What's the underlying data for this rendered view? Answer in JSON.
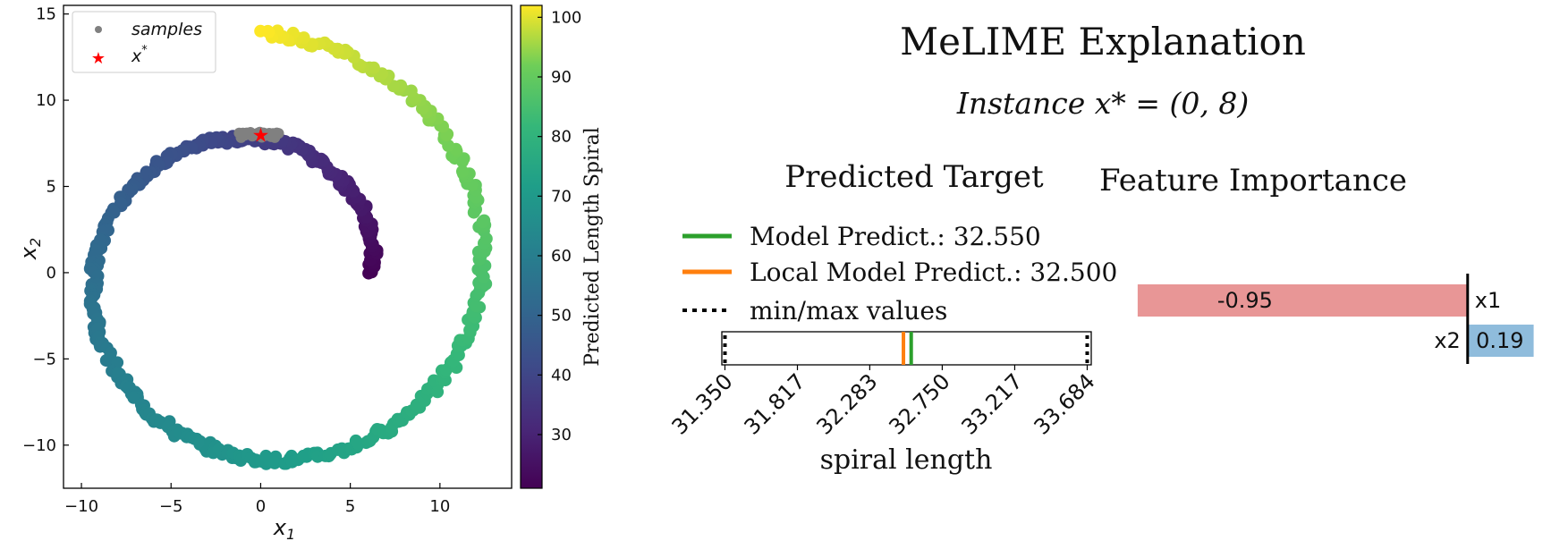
{
  "scatter": {
    "x_axis_label": "x",
    "x_axis_sub": "1",
    "y_axis_label": "x",
    "y_axis_sub": "2",
    "legend": {
      "samples_label": "samples",
      "xstar_label": "x",
      "xstar_sup": "*"
    },
    "colorbar_label": "Predicted Length Spiral",
    "colors": {
      "samples": "#808080",
      "xstar": "#ff0000"
    }
  },
  "melime": {
    "title": "MeLIME Explanation",
    "instance_label": "Instance x* = (0, 8)",
    "predicted_title": "Predicted Target",
    "feature_title": "Feature Importance",
    "legend": {
      "model_predict": "Model Predict.: 32.550",
      "local_predict": "Local Model Predict.: 32.500",
      "minmax": "min/max values"
    },
    "colors": {
      "model": "#2ca02c",
      "local": "#ff7f0e",
      "negative": "#e89696",
      "positive": "#8fbcdc"
    }
  },
  "chart_data": [
    {
      "type": "scatter",
      "title": "",
      "xlabel": "x1",
      "ylabel": "x2",
      "xlim": [
        -11,
        14
      ],
      "ylim": [
        -12.5,
        15.5
      ],
      "xticks": [
        "−10",
        "−5",
        "0",
        "5",
        "10"
      ],
      "xtick_values": [
        -10,
        -5,
        0,
        5,
        10
      ],
      "yticks": [
        "−10",
        "−5",
        "0",
        "5",
        "10",
        "15"
      ],
      "ytick_values": [
        -10,
        -5,
        0,
        5,
        10,
        15
      ],
      "spiral": {
        "description": "Archimedean spiral points colored by predicted length",
        "radius_start": 6.2,
        "radius_end": 13.9,
        "angle_start_deg": 0,
        "angle_end_deg": 450,
        "length_range": [
          21,
          102
        ]
      },
      "samples": {
        "x_min": -1.2,
        "x_max": 1.0,
        "y": 8.0
      },
      "xstar": {
        "x": 0,
        "y": 8
      }
    },
    {
      "type": "colorbar",
      "ylabel": "Predicted Length Spiral",
      "ylim": [
        21,
        102
      ],
      "tick_values": [
        30,
        40,
        50,
        60,
        70,
        80,
        90,
        100
      ],
      "ticks": [
        "30",
        "40",
        "50",
        "60",
        "70",
        "80",
        "90",
        "100"
      ],
      "colormap": "viridis"
    },
    {
      "type": "line",
      "title": "Predicted Target",
      "xlabel": "spiral length",
      "xlim": [
        31.33,
        33.71
      ],
      "tick_values": [
        31.35,
        31.817,
        32.283,
        32.75,
        33.217,
        33.684
      ],
      "ticks": [
        "31.350",
        "31.817",
        "32.283",
        "32.750",
        "33.217",
        "33.684"
      ],
      "model_predict": 32.55,
      "local_model_predict": 32.5,
      "min_value": 31.35,
      "max_value": 33.684
    },
    {
      "type": "bar",
      "title": "Feature Importance",
      "orientation": "horizontal",
      "categories": [
        "x1",
        "x2"
      ],
      "values": [
        -0.95,
        0.19
      ],
      "value_labels": [
        "-0.95",
        "0.19"
      ],
      "xlim": [
        -0.96,
        0.24
      ]
    }
  ]
}
